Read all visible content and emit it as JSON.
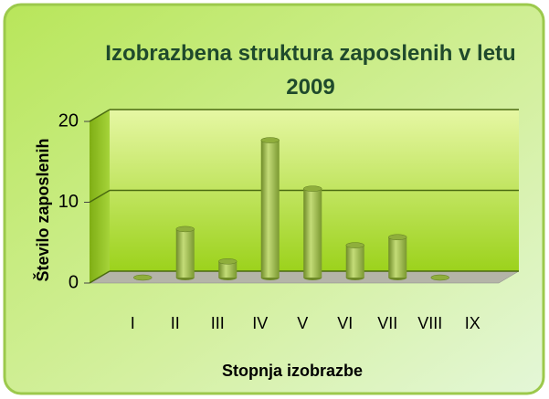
{
  "chart_data": {
    "type": "bar3d",
    "title": "Izobrazbena struktura zaposlenih v letu 2009",
    "y_label": "Število zaposlenih",
    "x_label": "Stopnja izobrazbe",
    "categories": [
      "I",
      "II",
      "III",
      "IV",
      "V",
      "VI",
      "VII",
      "VIII",
      "IX"
    ],
    "values": [
      0,
      6,
      2,
      17,
      11,
      4,
      5,
      0,
      null
    ],
    "color": "#8fae3c",
    "ylim": [
      0,
      20
    ],
    "yticks": [
      0,
      10,
      20
    ],
    "grid": true
  }
}
